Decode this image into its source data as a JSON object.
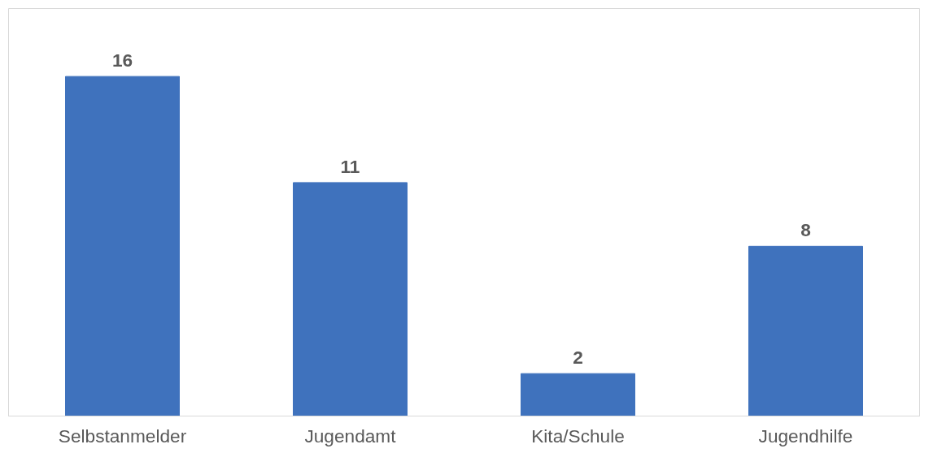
{
  "chart_data": {
    "type": "bar",
    "categories": [
      "Selbstanmelder",
      "Jugendamt",
      "Kita/Schule",
      "Jugendhilfe"
    ],
    "values": [
      16,
      11,
      2,
      8
    ],
    "color": "#3f72bd",
    "data_labels": true,
    "tick_labels": "x"
  }
}
